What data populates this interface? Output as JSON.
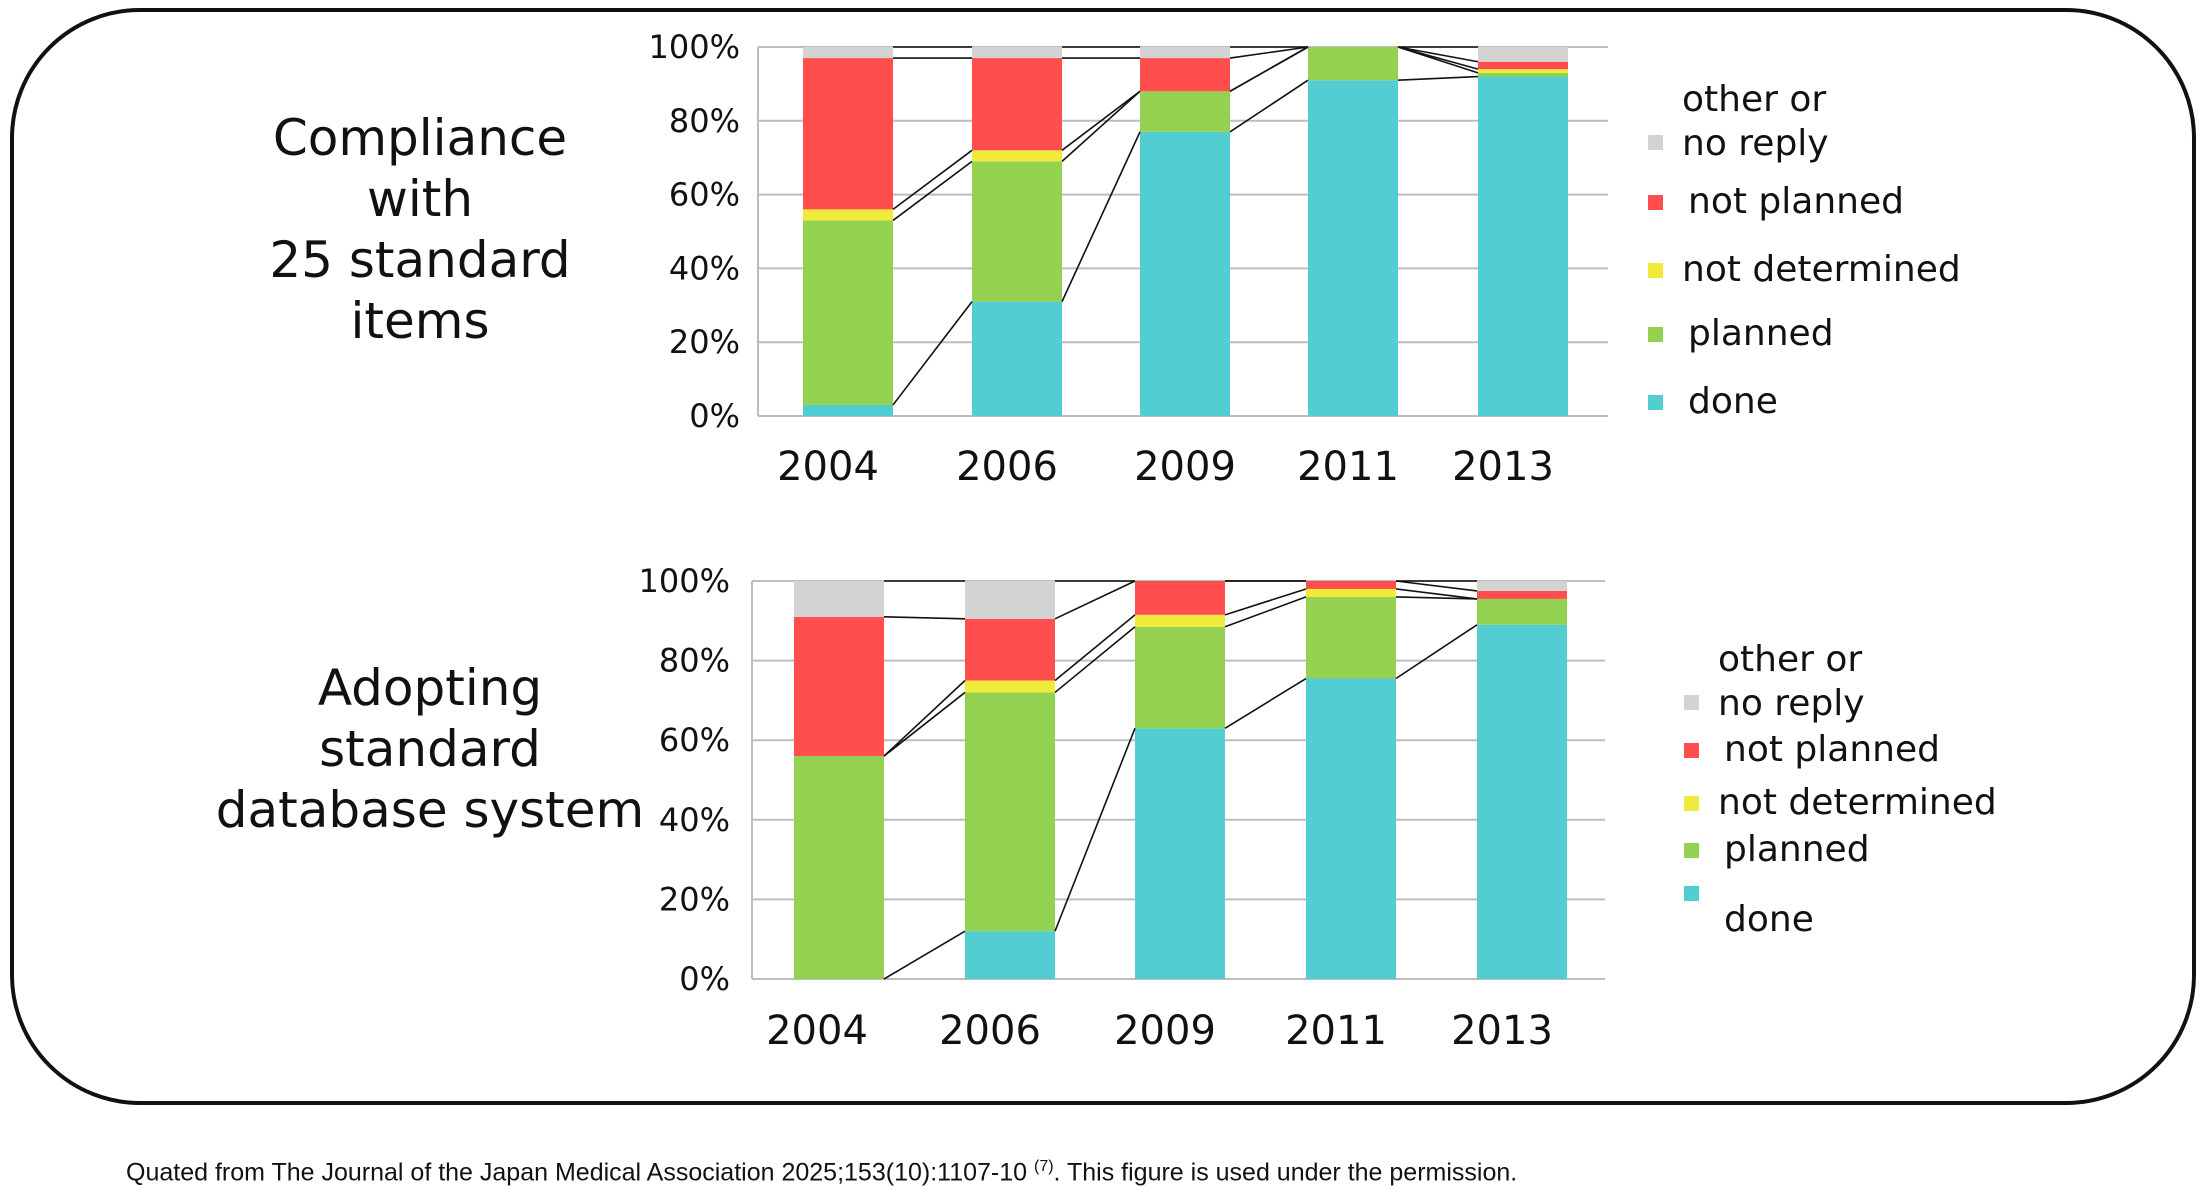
{
  "footnote": {
    "before": "Quated from The Journal of the Japan Medical Association 2025;153(10):1107-10 ",
    "ref": "(7)",
    "after": ". This figure is used under the permission."
  },
  "colors": {
    "done": "#52cdd1",
    "planned": "#94d150",
    "not_determined": "#f0eb3a",
    "not_planned": "#ff4e4e",
    "other": "#d3d3d3"
  },
  "charts": [
    {
      "title_lines": [
        "Compliance",
        "with",
        "25 standard",
        "items"
      ],
      "legend": [
        {
          "key": "other",
          "label_lines": [
            "other or",
            "no reply"
          ]
        },
        {
          "key": "not_planned",
          "label_lines": [
            "not planned"
          ]
        },
        {
          "key": "not_determined",
          "label_lines": [
            "not determined"
          ]
        },
        {
          "key": "planned",
          "label_lines": [
            "planned"
          ]
        },
        {
          "key": "done",
          "label_lines": [
            "done"
          ]
        }
      ]
    },
    {
      "title_lines": [
        "Adopting",
        "standard",
        "database system"
      ],
      "legend": [
        {
          "key": "other",
          "label_lines": [
            "other or",
            "no reply"
          ]
        },
        {
          "key": "not_planned",
          "label_lines": [
            "not planned"
          ]
        },
        {
          "key": "not_determined",
          "label_lines": [
            "not determined"
          ]
        },
        {
          "key": "planned",
          "label_lines": [
            "planned"
          ]
        },
        {
          "key": "done",
          "label_lines": [
            "done"
          ]
        }
      ]
    }
  ],
  "chart_data": [
    {
      "type": "bar",
      "stacked": true,
      "categories": [
        "2004",
        "2006",
        "2009",
        "2011",
        "2013"
      ],
      "y_ticks": [
        "0%",
        "20%",
        "40%",
        "60%",
        "80%",
        "100%"
      ],
      "ylim": [
        0,
        100
      ],
      "series": [
        {
          "name": "done",
          "values": [
            3,
            31,
            77,
            91,
            92
          ]
        },
        {
          "name": "planned",
          "values": [
            50,
            38,
            11,
            9,
            1
          ]
        },
        {
          "name": "not determined",
          "values": [
            3,
            3,
            0,
            0,
            1
          ]
        },
        {
          "name": "not planned",
          "values": [
            41,
            25,
            9,
            0,
            2
          ]
        },
        {
          "name": "other or no reply",
          "values": [
            3,
            3,
            3,
            0,
            4
          ]
        }
      ]
    },
    {
      "type": "bar",
      "stacked": true,
      "categories": [
        "2004",
        "2006",
        "2009",
        "2011",
        "2013"
      ],
      "y_ticks": [
        "0%",
        "20%",
        "40%",
        "60%",
        "80%",
        "100%"
      ],
      "ylim": [
        0,
        100
      ],
      "series": [
        {
          "name": "done",
          "values": [
            0,
            12,
            63,
            75.5,
            89
          ]
        },
        {
          "name": "planned",
          "values": [
            56,
            60,
            25.5,
            20.5,
            6.5
          ]
        },
        {
          "name": "not determined",
          "values": [
            0,
            3,
            3,
            2,
            0
          ]
        },
        {
          "name": "not planned",
          "values": [
            35,
            15.5,
            8.5,
            2,
            2
          ]
        },
        {
          "name": "other or no reply",
          "values": [
            9,
            9.5,
            0,
            0,
            2.5
          ]
        }
      ]
    }
  ]
}
